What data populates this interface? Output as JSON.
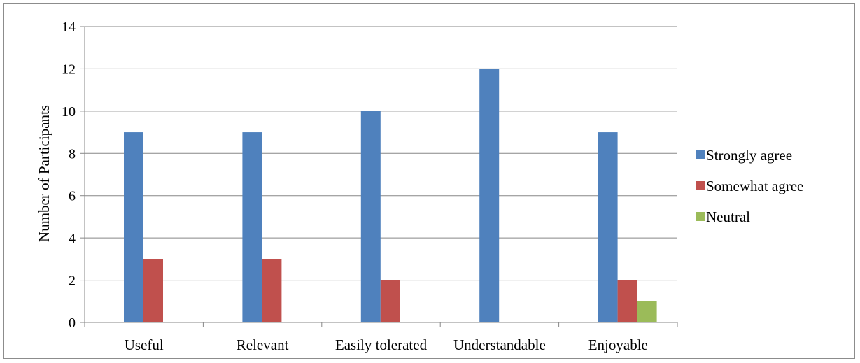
{
  "chart_data": {
    "type": "bar",
    "title": "",
    "xlabel": "",
    "ylabel": "Number of Participants",
    "categories": [
      "Useful",
      "Relevant",
      "Easily tolerated",
      "Understandable",
      "Enjoyable"
    ],
    "series": [
      {
        "name": "Strongly agree",
        "color": "#4F81BD",
        "values": [
          9,
          9,
          10,
          12,
          9
        ]
      },
      {
        "name": "Somewhat agree",
        "color": "#C0504D",
        "values": [
          3,
          3,
          2,
          0,
          2
        ]
      },
      {
        "name": "Neutral",
        "color": "#9BBB59",
        "values": [
          0,
          0,
          0,
          0,
          1
        ]
      }
    ],
    "ylim": [
      0,
      14
    ],
    "yticks": [
      0,
      2,
      4,
      6,
      8,
      10,
      12,
      14
    ],
    "grid": true,
    "legend_position": "right"
  }
}
